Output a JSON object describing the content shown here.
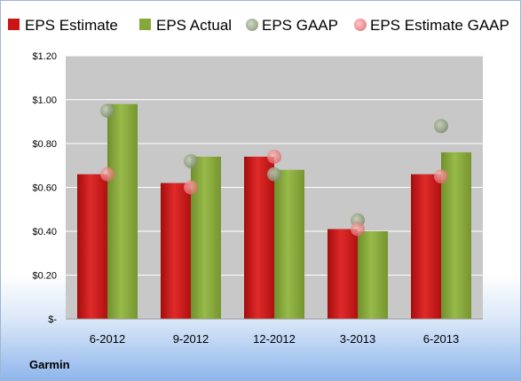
{
  "footer": {
    "company": "Garmin"
  },
  "colors": {
    "estimate": "#cc1414",
    "actual": "#86a83a",
    "gaap": "#9aa88a",
    "estimate_gaap": "#f08080",
    "plot_bg": "#c8c8c8",
    "grid": "#ffffff"
  },
  "chart_data": {
    "type": "bar",
    "categories": [
      "6-2012",
      "9-2012",
      "12-2012",
      "3-2013",
      "6-2013"
    ],
    "series": [
      {
        "name": "EPS Estimate",
        "kind": "bar",
        "values": [
          0.66,
          0.62,
          0.74,
          0.41,
          0.66
        ]
      },
      {
        "name": "EPS Actual",
        "kind": "bar",
        "values": [
          0.98,
          0.74,
          0.68,
          0.4,
          0.76
        ]
      },
      {
        "name": "EPS GAAP",
        "kind": "marker",
        "values": [
          0.95,
          0.72,
          0.66,
          0.45,
          0.88
        ]
      },
      {
        "name": "EPS Estimate GAAP",
        "kind": "marker",
        "values": [
          0.66,
          0.6,
          0.74,
          0.41,
          0.65
        ]
      }
    ],
    "y_ticks": [
      "$-",
      "$0.20",
      "$0.40",
      "$0.60",
      "$0.80",
      "$1.00",
      "$1.20"
    ],
    "ylim": [
      0,
      1.2
    ],
    "legend_position": "top",
    "grid": true
  }
}
